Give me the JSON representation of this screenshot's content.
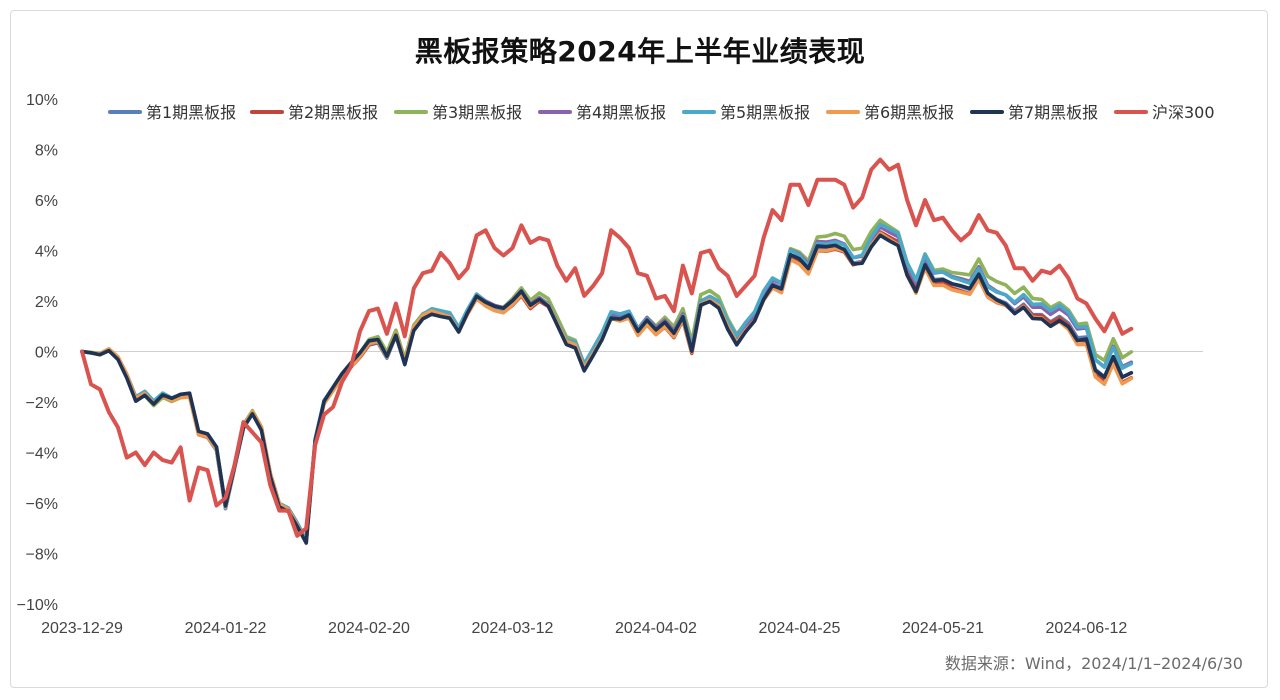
{
  "chart_data": {
    "type": "line",
    "title": "黑板报策略2024年上半年业绩表现",
    "xlabel": "",
    "ylabel": "",
    "ylim": [
      -10,
      10
    ],
    "yticks": [
      {
        "v": 10,
        "label": "10%"
      },
      {
        "v": 8,
        "label": "8%"
      },
      {
        "v": 6,
        "label": "6%"
      },
      {
        "v": 4,
        "label": "4%"
      },
      {
        "v": 2,
        "label": "2%"
      },
      {
        "v": 0,
        "label": "0%"
      },
      {
        "v": -2,
        "label": "−2%"
      },
      {
        "v": -4,
        "label": "−4%"
      },
      {
        "v": -6,
        "label": "−6%"
      },
      {
        "v": -8,
        "label": "−8%"
      },
      {
        "v": -10,
        "label": "−10%"
      }
    ],
    "xticks": [
      {
        "i": 0,
        "label": "2023-12-29"
      },
      {
        "i": 16,
        "label": "2024-01-22"
      },
      {
        "i": 32,
        "label": "2024-02-20"
      },
      {
        "i": 48,
        "label": "2024-03-12"
      },
      {
        "i": 64,
        "label": "2024-04-02"
      },
      {
        "i": 80,
        "label": "2024-04-25"
      },
      {
        "i": 96,
        "label": "2024-05-21"
      },
      {
        "i": 112,
        "label": "2024-06-12"
      }
    ],
    "legend_position": "top",
    "points": 126,
    "anchors_index": {
      "strategy": [
        [
          0,
          0
        ],
        [
          2,
          -0.1
        ],
        [
          3,
          0.1
        ],
        [
          4,
          -0.2
        ],
        [
          5,
          -0.9
        ],
        [
          6,
          -1.8
        ],
        [
          7,
          -1.6
        ],
        [
          8,
          -2.0
        ],
        [
          9,
          -1.7
        ],
        [
          10,
          -1.9
        ],
        [
          11,
          -1.8
        ],
        [
          12,
          -1.8
        ],
        [
          13,
          -3.3
        ],
        [
          14,
          -3.4
        ],
        [
          15,
          -3.9
        ],
        [
          16,
          -6.2
        ],
        [
          17,
          -4.6
        ],
        [
          18,
          -3.0
        ],
        [
          19,
          -2.4
        ],
        [
          20,
          -3.0
        ],
        [
          21,
          -4.8
        ],
        [
          22,
          -6.0
        ],
        [
          23,
          -6.2
        ],
        [
          24,
          -6.8
        ],
        [
          25,
          -7.5
        ],
        [
          26,
          -3.5
        ],
        [
          27,
          -2.0
        ],
        [
          28,
          -1.5
        ],
        [
          29,
          -1.0
        ],
        [
          30,
          -0.6
        ],
        [
          31,
          -0.2
        ],
        [
          32,
          0.3
        ],
        [
          33,
          0.4
        ],
        [
          34,
          -0.2
        ],
        [
          35,
          0.7
        ],
        [
          36,
          -0.4
        ],
        [
          37,
          1.0
        ],
        [
          38,
          1.5
        ],
        [
          39,
          1.7
        ],
        [
          40,
          1.6
        ],
        [
          41,
          1.5
        ],
        [
          42,
          0.9
        ],
        [
          43,
          1.6
        ],
        [
          44,
          2.2
        ],
        [
          45,
          1.9
        ],
        [
          46,
          1.7
        ],
        [
          47,
          1.6
        ],
        [
          48,
          1.9
        ],
        [
          49,
          2.3
        ],
        [
          50,
          1.8
        ],
        [
          51,
          2.1
        ],
        [
          52,
          1.9
        ],
        [
          53,
          1.2
        ],
        [
          54,
          0.5
        ],
        [
          55,
          0.4
        ],
        [
          56,
          -0.5
        ],
        [
          57,
          0.1
        ],
        [
          58,
          0.7
        ],
        [
          59,
          1.5
        ],
        [
          60,
          1.4
        ],
        [
          61,
          1.5
        ],
        [
          62,
          0.8
        ],
        [
          63,
          1.2
        ],
        [
          64,
          0.8
        ],
        [
          65,
          1.1
        ],
        [
          66,
          0.7
        ],
        [
          67,
          1.4
        ],
        [
          68,
          0.1
        ],
        [
          69,
          2.0
        ],
        [
          70,
          2.2
        ],
        [
          71,
          2.0
        ],
        [
          72,
          1.2
        ],
        [
          73,
          0.6
        ],
        [
          74,
          1.1
        ],
        [
          75,
          1.5
        ],
        [
          76,
          2.3
        ],
        [
          77,
          2.8
        ],
        [
          78,
          2.6
        ],
        [
          79,
          3.9
        ],
        [
          80,
          3.7
        ],
        [
          81,
          3.3
        ],
        [
          82,
          4.2
        ],
        [
          83,
          4.2
        ],
        [
          84,
          4.3
        ],
        [
          85,
          4.2
        ],
        [
          86,
          3.7
        ],
        [
          87,
          3.8
        ],
        [
          88,
          4.5
        ],
        [
          89,
          5.0
        ],
        [
          90,
          4.8
        ],
        [
          91,
          4.6
        ],
        [
          92,
          3.4
        ],
        [
          93,
          2.7
        ],
        [
          94,
          3.7
        ],
        [
          95,
          3.0
        ],
        [
          96,
          3.0
        ],
        [
          97,
          2.8
        ],
        [
          98,
          2.7
        ],
        [
          99,
          2.6
        ],
        [
          100,
          3.2
        ],
        [
          101,
          2.5
        ],
        [
          102,
          2.3
        ],
        [
          103,
          2.2
        ],
        [
          104,
          1.9
        ],
        [
          105,
          2.2
        ],
        [
          106,
          1.8
        ],
        [
          107,
          1.8
        ],
        [
          108,
          1.5
        ],
        [
          109,
          1.7
        ],
        [
          110,
          1.4
        ],
        [
          111,
          0.8
        ],
        [
          112,
          0.8
        ],
        [
          113,
          -0.5
        ],
        [
          114,
          -0.8
        ],
        [
          115,
          0.0
        ],
        [
          116,
          -0.8
        ],
        [
          117,
          -0.6
        ]
      ],
      "csi300": [
        [
          0,
          0
        ],
        [
          1,
          -1.3
        ],
        [
          2,
          -1.5
        ],
        [
          3,
          -2.4
        ],
        [
          4,
          -3.0
        ],
        [
          5,
          -4.2
        ],
        [
          6,
          -4.0
        ],
        [
          7,
          -4.5
        ],
        [
          8,
          -4.0
        ],
        [
          9,
          -4.3
        ],
        [
          10,
          -4.4
        ],
        [
          11,
          -3.8
        ],
        [
          12,
          -5.9
        ],
        [
          13,
          -4.6
        ],
        [
          14,
          -4.7
        ],
        [
          15,
          -6.1
        ],
        [
          16,
          -5.8
        ],
        [
          17,
          -4.5
        ],
        [
          18,
          -2.8
        ],
        [
          19,
          -3.2
        ],
        [
          20,
          -3.6
        ],
        [
          21,
          -5.3
        ],
        [
          22,
          -6.3
        ],
        [
          23,
          -6.3
        ],
        [
          24,
          -7.3
        ],
        [
          25,
          -7.0
        ],
        [
          26,
          -3.7
        ],
        [
          27,
          -2.5
        ],
        [
          28,
          -2.2
        ],
        [
          29,
          -1.2
        ],
        [
          30,
          -0.6
        ],
        [
          31,
          0.8
        ],
        [
          32,
          1.6
        ],
        [
          33,
          1.7
        ],
        [
          34,
          0.7
        ],
        [
          35,
          1.9
        ],
        [
          36,
          0.6
        ],
        [
          37,
          2.5
        ],
        [
          38,
          3.1
        ],
        [
          39,
          3.2
        ],
        [
          40,
          3.9
        ],
        [
          41,
          3.5
        ],
        [
          42,
          2.9
        ],
        [
          43,
          3.3
        ],
        [
          44,
          4.6
        ],
        [
          45,
          4.8
        ],
        [
          46,
          4.1
        ],
        [
          47,
          3.8
        ],
        [
          48,
          4.1
        ],
        [
          49,
          5.0
        ],
        [
          50,
          4.3
        ],
        [
          51,
          4.5
        ],
        [
          52,
          4.4
        ],
        [
          53,
          3.4
        ],
        [
          54,
          2.8
        ],
        [
          55,
          3.3
        ],
        [
          56,
          2.2
        ],
        [
          57,
          2.6
        ],
        [
          58,
          3.1
        ],
        [
          59,
          4.8
        ],
        [
          60,
          4.5
        ],
        [
          61,
          4.1
        ],
        [
          62,
          3.1
        ],
        [
          63,
          3.0
        ],
        [
          64,
          2.1
        ],
        [
          65,
          2.2
        ],
        [
          66,
          1.6
        ],
        [
          67,
          3.4
        ],
        [
          68,
          2.3
        ],
        [
          69,
          3.9
        ],
        [
          70,
          4.0
        ],
        [
          71,
          3.3
        ],
        [
          72,
          3.0
        ],
        [
          73,
          2.2
        ],
        [
          74,
          2.6
        ],
        [
          75,
          3.0
        ],
        [
          76,
          4.5
        ],
        [
          77,
          5.6
        ],
        [
          78,
          5.2
        ],
        [
          79,
          6.6
        ],
        [
          80,
          6.6
        ],
        [
          81,
          5.8
        ],
        [
          82,
          6.8
        ],
        [
          83,
          6.8
        ],
        [
          84,
          6.8
        ],
        [
          85,
          6.6
        ],
        [
          86,
          5.7
        ],
        [
          87,
          6.1
        ],
        [
          88,
          7.2
        ],
        [
          89,
          7.6
        ],
        [
          90,
          7.2
        ],
        [
          91,
          7.4
        ],
        [
          92,
          6.0
        ],
        [
          93,
          5.0
        ],
        [
          94,
          6.0
        ],
        [
          95,
          5.2
        ],
        [
          96,
          5.3
        ],
        [
          97,
          4.8
        ],
        [
          98,
          4.4
        ],
        [
          99,
          4.7
        ],
        [
          100,
          5.4
        ],
        [
          101,
          4.8
        ],
        [
          102,
          4.7
        ],
        [
          103,
          4.2
        ],
        [
          104,
          3.3
        ],
        [
          105,
          3.3
        ],
        [
          106,
          2.8
        ],
        [
          107,
          3.2
        ],
        [
          108,
          3.1
        ],
        [
          109,
          3.4
        ],
        [
          110,
          2.9
        ],
        [
          111,
          2.1
        ],
        [
          112,
          1.9
        ],
        [
          113,
          1.3
        ],
        [
          114,
          0.8
        ],
        [
          115,
          1.5
        ],
        [
          116,
          0.7
        ],
        [
          117,
          0.9
        ]
      ]
    },
    "series": [
      {
        "name": "第1期黑板报",
        "color": "#5a7fbd",
        "offset_start": -0.15,
        "offset_end": -0.35
      },
      {
        "name": "第2期黑板报",
        "color": "#c0463b",
        "offset_start": -0.05,
        "offset_end": -0.5
      },
      {
        "name": "第3期黑板报",
        "color": "#8fb35a",
        "offset_start": 0.25,
        "offset_end": 0.5
      },
      {
        "name": "第4期黑板报",
        "color": "#8a63ae",
        "offset_start": 0.2,
        "offset_end": 0.1
      },
      {
        "name": "第5期黑板报",
        "color": "#4aa8c8",
        "offset_start": 0.1,
        "offset_end": 0.15
      },
      {
        "name": "第6期黑板报",
        "color": "#f0994f",
        "offset_start": -0.1,
        "offset_end": -0.6
      },
      {
        "name": "第7期黑板报",
        "color": "#1f3454",
        "offset_start": -0.3,
        "offset_end": -0.45
      },
      {
        "name": "沪深300",
        "color": "#d9534f",
        "base": "csi300"
      }
    ]
  },
  "footnote": "数据来源：Wind，2024/1/1–2024/6/30"
}
